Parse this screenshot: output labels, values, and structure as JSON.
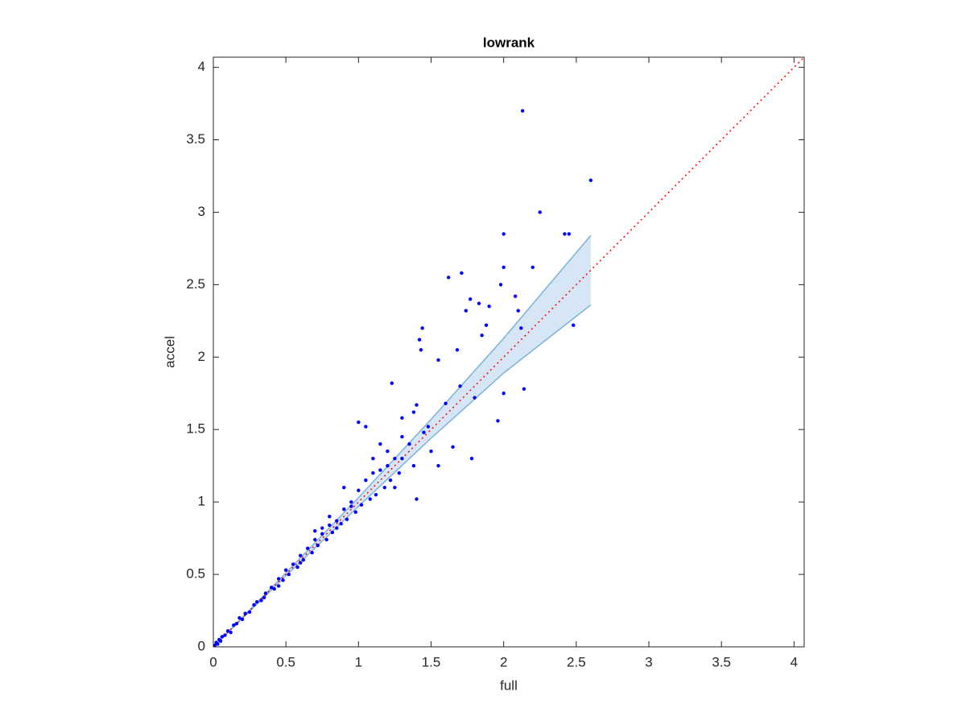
{
  "chart_data": {
    "type": "scatter",
    "title": "lowrank",
    "x_label": "full",
    "y_label": "accel",
    "xlim": [
      0,
      4.07
    ],
    "ylim": [
      0,
      4.07
    ],
    "xticks": [
      0,
      0.5,
      1,
      1.5,
      2,
      2.5,
      3,
      3.5,
      4
    ],
    "yticks": [
      0,
      0.5,
      1,
      1.5,
      2,
      2.5,
      3,
      3.5,
      4
    ],
    "series": [
      {
        "type": "scatter",
        "color": "#0000ff",
        "x": [
          0.01,
          0.02,
          0.03,
          0.04,
          0.05,
          0.06,
          0.08,
          0.1,
          0.12,
          0.14,
          0.16,
          0.18,
          0.2,
          0.22,
          0.25,
          0.28,
          0.3,
          0.33,
          0.36,
          0.4,
          0.42,
          0.45,
          0.48,
          0.5,
          0.52,
          0.55,
          0.58,
          0.6,
          0.62,
          0.65,
          0.68,
          0.7,
          0.72,
          0.75,
          0.78,
          0.8,
          0.82,
          0.85,
          0.88,
          0.9,
          0.92,
          0.95,
          0.98,
          1.0,
          1.02,
          1.05,
          1.08,
          1.1,
          1.12,
          1.15,
          1.18,
          1.2,
          1.22,
          1.25,
          1.28,
          1.3,
          1.35,
          1.38,
          1.45,
          1.48,
          1.6,
          1.7,
          1.8,
          0.7,
          0.75,
          0.6,
          0.45,
          0.35,
          2.13,
          2.6,
          2.25,
          2.0,
          2.42,
          2.45,
          1.62,
          1.71,
          2.0,
          2.2,
          1.98,
          2.08,
          1.74,
          1.77,
          1.83,
          1.9,
          1.88,
          2.1,
          2.12,
          2.48,
          1.44,
          1.42,
          1.68,
          1.55,
          1.43,
          1.85,
          2.0,
          2.14,
          1.96,
          1.78,
          1.65,
          1.23,
          1.0,
          1.05,
          1.3,
          1.4,
          1.38,
          1.5,
          1.55,
          1.4,
          1.3,
          1.2,
          1.1,
          1.15,
          1.25,
          0.9,
          0.95,
          0.85,
          0.8
        ],
        "values": [
          0.01,
          0.03,
          0.02,
          0.05,
          0.04,
          0.07,
          0.08,
          0.11,
          0.1,
          0.15,
          0.16,
          0.2,
          0.19,
          0.23,
          0.24,
          0.29,
          0.31,
          0.32,
          0.37,
          0.41,
          0.4,
          0.47,
          0.46,
          0.53,
          0.5,
          0.57,
          0.55,
          0.63,
          0.6,
          0.68,
          0.65,
          0.74,
          0.7,
          0.78,
          0.74,
          0.84,
          0.79,
          0.87,
          0.85,
          0.95,
          0.88,
          1.0,
          0.93,
          1.08,
          0.98,
          1.15,
          1.02,
          1.2,
          1.05,
          1.22,
          1.1,
          1.35,
          1.15,
          1.3,
          1.2,
          1.45,
          1.4,
          1.25,
          1.48,
          1.52,
          1.68,
          1.8,
          1.72,
          0.8,
          0.82,
          0.58,
          0.42,
          0.34,
          3.7,
          3.22,
          3.0,
          2.85,
          2.85,
          2.85,
          2.55,
          2.58,
          2.62,
          2.62,
          2.5,
          2.42,
          2.32,
          2.4,
          2.37,
          2.35,
          2.22,
          2.32,
          2.2,
          2.22,
          2.2,
          2.12,
          2.05,
          1.98,
          2.05,
          2.15,
          1.75,
          1.78,
          1.56,
          1.3,
          1.38,
          1.82,
          1.55,
          1.52,
          1.58,
          1.67,
          1.62,
          1.35,
          1.25,
          1.02,
          1.3,
          1.25,
          1.3,
          1.4,
          1.1,
          1.1,
          0.97,
          0.82,
          0.9
        ]
      },
      {
        "type": "band",
        "color": "#7ab3d9",
        "fill": "#d6e6f4",
        "x": [
          0,
          0.5,
          1.0,
          1.5,
          2.0,
          2.6
        ],
        "upper": [
          0,
          0.51,
          1.03,
          1.57,
          2.13,
          2.84
        ],
        "lower": [
          0,
          0.49,
          0.97,
          1.44,
          1.89,
          2.36
        ]
      },
      {
        "type": "line",
        "color": "#ff0000",
        "dashed": true,
        "x": [
          0,
          4.07
        ],
        "values": [
          0,
          4.07
        ]
      }
    ]
  }
}
